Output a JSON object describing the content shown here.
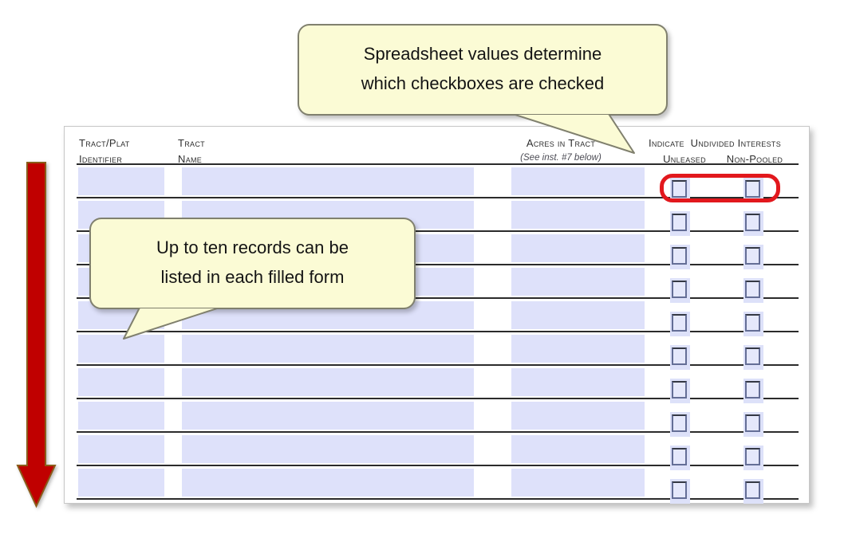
{
  "annotations": {
    "callout_top": {
      "line1": "Spreadsheet values determine",
      "line2": "which checkboxes are checked"
    },
    "callout_left": {
      "line1": "Up to ten records can be",
      "line2": "listed in each filled form"
    },
    "arrow_icon": "red-down-arrow",
    "highlight": "first-row-interest-checkboxes"
  },
  "form": {
    "headers": {
      "col1_line1": "Tract/Plat",
      "col1_line2": "Identifier",
      "col2_line1": "Tract",
      "col2_line2": "Name",
      "col3_line1": "Acres in Tract",
      "col3_note": "(See inst. #7 below)",
      "col4_line1": "Indicate  Undivided Interests",
      "col4_sub1": "Unleased",
      "col4_sub2": "Non-Pooled"
    },
    "rows": [
      {
        "identifier": "",
        "name": "",
        "acres": "",
        "unleased": false,
        "non_pooled": false
      },
      {
        "identifier": "",
        "name": "",
        "acres": "",
        "unleased": false,
        "non_pooled": false
      },
      {
        "identifier": "",
        "name": "",
        "acres": "",
        "unleased": false,
        "non_pooled": false
      },
      {
        "identifier": "",
        "name": "",
        "acres": "",
        "unleased": false,
        "non_pooled": false
      },
      {
        "identifier": "",
        "name": "",
        "acres": "",
        "unleased": false,
        "non_pooled": false
      },
      {
        "identifier": "",
        "name": "",
        "acres": "",
        "unleased": false,
        "non_pooled": false
      },
      {
        "identifier": "",
        "name": "",
        "acres": "",
        "unleased": false,
        "non_pooled": false
      },
      {
        "identifier": "",
        "name": "",
        "acres": "",
        "unleased": false,
        "non_pooled": false
      },
      {
        "identifier": "",
        "name": "",
        "acres": "",
        "unleased": false,
        "non_pooled": false
      },
      {
        "identifier": "",
        "name": "",
        "acres": "",
        "unleased": false,
        "non_pooled": false
      }
    ]
  },
  "colors": {
    "field_fill": "#dee1fa",
    "checkbox_border": "#646e96",
    "line_color": "#2b2b2b",
    "callout_fill": "#fbfbd5",
    "callout_border": "#80806e",
    "highlight_red": "#e2181d",
    "arrow_fill": "#c00000",
    "arrow_border": "#8a5c1a"
  }
}
